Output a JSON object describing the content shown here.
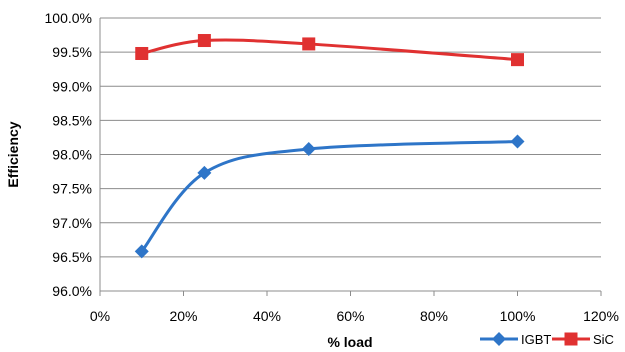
{
  "chart_data": {
    "type": "line",
    "title": "",
    "xlabel": "% load",
    "ylabel": "Efficiency",
    "xlim": [
      0,
      120
    ],
    "ylim": [
      96.0,
      100.0
    ],
    "x_ticks": [
      "0%",
      "20%",
      "40%",
      "60%",
      "80%",
      "100%",
      "120%"
    ],
    "y_ticks": [
      "96.0%",
      "96.5%",
      "97.0%",
      "97.5%",
      "98.0%",
      "98.5%",
      "99.0%",
      "99.5%",
      "100.0%"
    ],
    "grid": "horizontal",
    "legend_position": "bottom-right",
    "series": [
      {
        "name": "IGBT",
        "color": "#2e75c8",
        "marker": "diamond",
        "x": [
          10,
          25,
          50,
          100
        ],
        "y": [
          96.58,
          97.73,
          98.08,
          98.19
        ]
      },
      {
        "name": "SiC",
        "color": "#e03131",
        "marker": "square",
        "x": [
          10,
          25,
          50,
          100
        ],
        "y": [
          99.48,
          99.67,
          99.62,
          99.39
        ]
      }
    ]
  }
}
